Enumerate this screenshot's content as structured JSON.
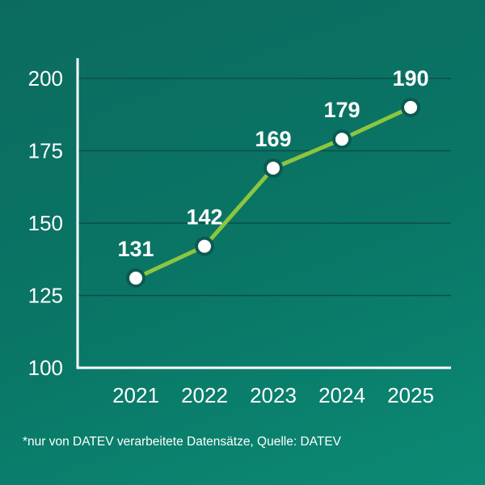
{
  "chart_data": {
    "type": "line",
    "x": [
      "2021",
      "2022",
      "2023",
      "2024",
      "2025"
    ],
    "series": [
      {
        "values": [
          131,
          142,
          169,
          179,
          190
        ]
      }
    ],
    "data_labels": [
      "131",
      "142",
      "169",
      "179",
      "190"
    ],
    "y_ticks": [
      "100",
      "125",
      "150",
      "175",
      "200"
    ],
    "ylim": [
      100,
      207
    ],
    "grid": true,
    "colors": {
      "line": "#8cc63f",
      "marker_fill": "#ffffff",
      "marker_stroke": "#0b5a52",
      "grid": "#0a4f48",
      "axis": "#ffffff"
    }
  },
  "footnote": "*nur von DATEV verarbeitete Datensätze, Quelle: DATEV"
}
